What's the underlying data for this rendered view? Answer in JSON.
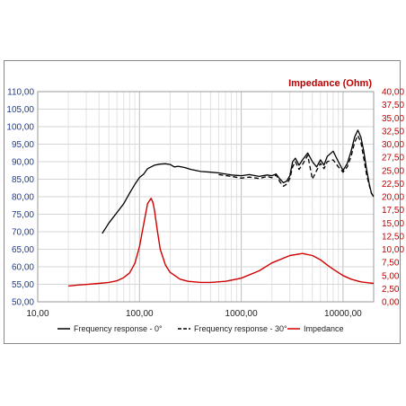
{
  "chart_data": {
    "type": "line",
    "title": "",
    "y2label": "Impedance (Ohm)",
    "x_scale": "log",
    "xlim": [
      10,
      20000
    ],
    "ylim": [
      50,
      110
    ],
    "y2lim": [
      0,
      40
    ],
    "x_ticks": [
      "10,00",
      "100,00",
      "1000,00",
      "10000,00"
    ],
    "y_ticks": [
      "50,00",
      "55,00",
      "60,00",
      "65,00",
      "70,00",
      "75,00",
      "80,00",
      "85,00",
      "90,00",
      "95,00",
      "100,00",
      "105,00",
      "110,00"
    ],
    "y2_ticks": [
      "0,00",
      "2,50",
      "5,00",
      "7,50",
      "10,00",
      "12,50",
      "15,00",
      "17,50",
      "20,00",
      "22,50",
      "25,00",
      "27,50",
      "30,00",
      "32,50",
      "35,00",
      "37,50",
      "40,00"
    ],
    "grid": true,
    "legend_position": "bottom",
    "series": [
      {
        "name": "Frequency response - 0°",
        "axis": "left",
        "color": "#000000",
        "dash": "solid",
        "x": [
          43,
          50,
          60,
          70,
          80,
          90,
          100,
          110,
          120,
          140,
          160,
          180,
          200,
          220,
          240,
          280,
          320,
          400,
          500,
          600,
          800,
          1000,
          1200,
          1500,
          1800,
          2000,
          2200,
          2400,
          2600,
          2800,
          3000,
          3200,
          3400,
          3700,
          4000,
          4500,
          5000,
          5500,
          6000,
          6500,
          7000,
          8000,
          9000,
          10000,
          11000,
          12000,
          13000,
          14000,
          15000,
          16000,
          17000,
          18000,
          19000,
          20000
        ],
        "y": [
          69.5,
          72.5,
          75.5,
          78,
          81,
          83.5,
          85.5,
          86.5,
          88,
          89,
          89.3,
          89.4,
          89.2,
          88.5,
          88.7,
          88.3,
          87.8,
          87.2,
          87,
          86.8,
          86.2,
          86,
          86.3,
          85.8,
          86.2,
          86,
          86.5,
          85,
          84,
          84.5,
          86,
          90,
          91,
          89,
          90.5,
          92.5,
          90,
          88.5,
          90.5,
          89,
          91.5,
          93,
          90,
          87.5,
          89.5,
          93,
          97,
          99,
          97,
          93,
          88,
          84,
          81,
          80
        ]
      },
      {
        "name": "Frequency response - 30°",
        "axis": "left",
        "color": "#000000",
        "dash": "dashed",
        "x": [
          600,
          800,
          1000,
          1200,
          1500,
          1800,
          2000,
          2200,
          2400,
          2600,
          2800,
          3000,
          3200,
          3400,
          3700,
          4000,
          4500,
          5000,
          5500,
          6000,
          6500,
          7000,
          8000,
          9000,
          10000,
          11000,
          12000,
          13000,
          14000,
          15000,
          16000,
          17000,
          18000,
          19000,
          20000
        ],
        "y": [
          86.3,
          85.8,
          85.3,
          85.6,
          85.2,
          85.8,
          85.4,
          86.2,
          84.2,
          83,
          83.6,
          85.2,
          88.5,
          90,
          87.8,
          89.2,
          91.8,
          85,
          87.5,
          89.5,
          88,
          90,
          90.5,
          88.5,
          87,
          88.5,
          91.5,
          95.5,
          97.5,
          95.5,
          91,
          86.5,
          83.5,
          81,
          80
        ]
      },
      {
        "name": "Impedance",
        "axis": "right",
        "color": "#d00000",
        "dash": "solid",
        "x": [
          20,
          25,
          30,
          40,
          50,
          60,
          70,
          80,
          90,
          100,
          110,
          120,
          130,
          135,
          140,
          150,
          160,
          180,
          200,
          250,
          300,
          400,
          500,
          700,
          1000,
          1500,
          2000,
          3000,
          4000,
          5000,
          6000,
          7000,
          8000,
          10000,
          12000,
          15000,
          18000,
          20000
        ],
        "y": [
          3.0,
          3.2,
          3.3,
          3.5,
          3.7,
          4.0,
          4.6,
          5.5,
          7.3,
          10.5,
          14.8,
          18.7,
          19.7,
          19.0,
          17.5,
          13.5,
          10.0,
          7.0,
          5.6,
          4.3,
          3.9,
          3.7,
          3.7,
          3.9,
          4.5,
          5.9,
          7.4,
          8.8,
          9.2,
          8.8,
          8.0,
          7.0,
          6.2,
          5.0,
          4.3,
          3.8,
          3.6,
          3.5
        ]
      }
    ]
  }
}
